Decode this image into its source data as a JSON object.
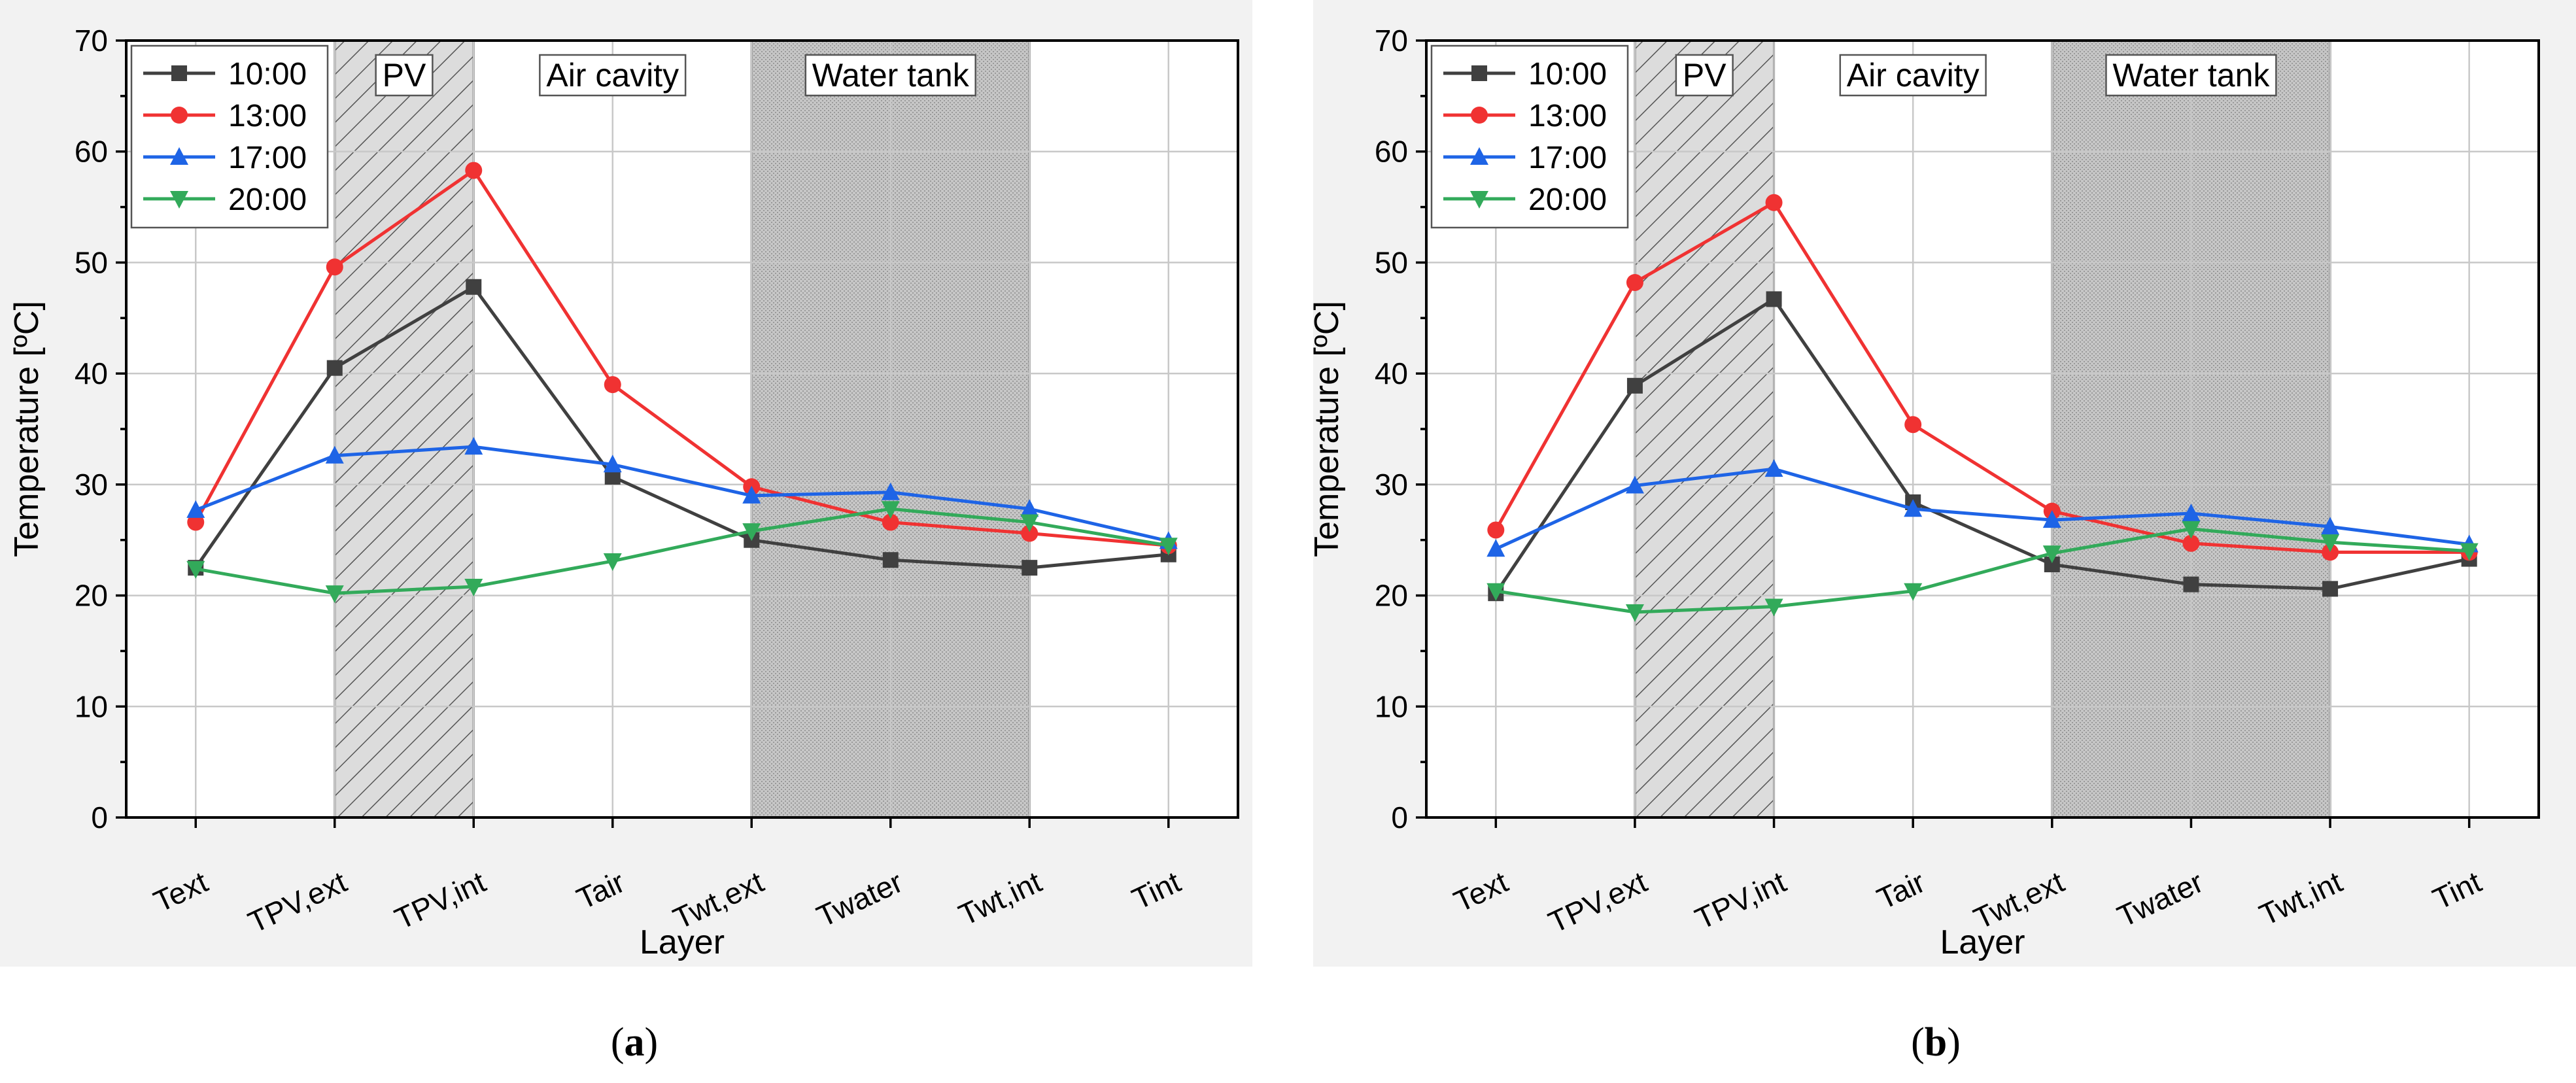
{
  "chart_data": [
    {
      "type": "line",
      "panel_label": "a",
      "title": "",
      "xlabel": "Layer",
      "ylabel": "Temperature [ºC]",
      "ylim": [
        0,
        70
      ],
      "yticks": [
        0,
        10,
        20,
        30,
        40,
        50,
        60,
        70
      ],
      "grid": true,
      "legend_position": "top-left",
      "categories": [
        "Text",
        "TPV,ext",
        "TPV,int",
        "Tair",
        "Twt,ext",
        "Twater",
        "Twt,int",
        "Tint"
      ],
      "regions": [
        {
          "label": "PV",
          "from": 1,
          "to": 2,
          "pattern": "hatch"
        },
        {
          "label": "Air cavity",
          "from": 2,
          "to": 4,
          "pattern": "none"
        },
        {
          "label": "Water tank",
          "from": 4,
          "to": 6,
          "pattern": "dots"
        }
      ],
      "series": [
        {
          "name": "10:00",
          "color": "#404040",
          "marker": "square",
          "values": [
            22.5,
            40.5,
            47.8,
            30.7,
            25.0,
            23.2,
            22.5,
            23.7
          ]
        },
        {
          "name": "13:00",
          "color": "#f03232",
          "marker": "circle",
          "values": [
            26.6,
            49.6,
            58.3,
            39.0,
            29.8,
            26.6,
            25.6,
            24.5
          ]
        },
        {
          "name": "17:00",
          "color": "#1e64e6",
          "marker": "triangle-up",
          "values": [
            27.7,
            32.6,
            33.4,
            31.8,
            29.0,
            29.3,
            27.8,
            24.9
          ]
        },
        {
          "name": "20:00",
          "color": "#32aa5a",
          "marker": "triangle-down",
          "values": [
            22.4,
            20.2,
            20.8,
            23.1,
            25.8,
            27.8,
            26.6,
            24.5
          ]
        }
      ]
    },
    {
      "type": "line",
      "panel_label": "b",
      "title": "",
      "xlabel": "Layer",
      "ylabel": "Temperature [ºC]",
      "ylim": [
        0,
        70
      ],
      "yticks": [
        0,
        10,
        20,
        30,
        40,
        50,
        60,
        70
      ],
      "grid": true,
      "legend_position": "top-left",
      "categories": [
        "Text",
        "TPV,ext",
        "TPV,int",
        "Tair",
        "Twt,ext",
        "Twater",
        "Twt,int",
        "Tint"
      ],
      "regions": [
        {
          "label": "PV",
          "from": 1,
          "to": 2,
          "pattern": "hatch"
        },
        {
          "label": "Air cavity",
          "from": 2,
          "to": 4,
          "pattern": "none"
        },
        {
          "label": "Water tank",
          "from": 4,
          "to": 6,
          "pattern": "dots"
        }
      ],
      "series": [
        {
          "name": "10:00",
          "color": "#404040",
          "marker": "square",
          "values": [
            20.2,
            38.9,
            46.7,
            28.4,
            22.8,
            21.0,
            20.6,
            23.3
          ]
        },
        {
          "name": "13:00",
          "color": "#f03232",
          "marker": "circle",
          "values": [
            25.9,
            48.2,
            55.4,
            35.4,
            27.6,
            24.7,
            23.9,
            23.9
          ]
        },
        {
          "name": "17:00",
          "color": "#1e64e6",
          "marker": "triangle-up",
          "values": [
            24.2,
            29.9,
            31.4,
            27.8,
            26.8,
            27.4,
            26.2,
            24.6
          ]
        },
        {
          "name": "20:00",
          "color": "#32aa5a",
          "marker": "triangle-down",
          "values": [
            20.4,
            18.5,
            19.0,
            20.4,
            23.8,
            26.0,
            24.8,
            24.0
          ]
        }
      ]
    }
  ]
}
